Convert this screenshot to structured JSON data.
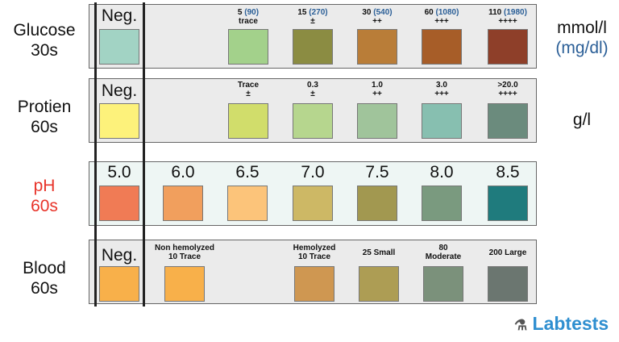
{
  "rows": {
    "glucose": {
      "name": "Glucose",
      "time": "30s",
      "unit": "mmol/l",
      "unit2": "(mg/dl)",
      "neg": "Neg.",
      "neg_color": "#a2d3c4",
      "levels": [
        {
          "v": "5",
          "mg": "(90)",
          "sym": "trace",
          "color": "#a3d18b"
        },
        {
          "v": "15",
          "mg": "(270)",
          "sym": "±",
          "color": "#8b8c42"
        },
        {
          "v": "30",
          "mg": "(540)",
          "sym": "++",
          "color": "#b97d38"
        },
        {
          "v": "60",
          "mg": "(1080)",
          "sym": "+++",
          "color": "#a75d28"
        },
        {
          "v": "110",
          "mg": "(1980)",
          "sym": "++++",
          "color": "#8e3f29"
        }
      ]
    },
    "protein": {
      "name": "Protien",
      "time": "60s",
      "unit": "g/l",
      "neg": "Neg.",
      "neg_color": "#fdf27b",
      "levels": [
        {
          "v": "Trace",
          "sym": "±",
          "color": "#d1dd6b"
        },
        {
          "v": "0.3",
          "sym": "±",
          "color": "#b6d68e"
        },
        {
          "v": "1.0",
          "sym": "++",
          "color": "#a0c49b"
        },
        {
          "v": "3.0",
          "sym": "+++",
          "color": "#87bfb0"
        },
        {
          "v": ">20.0",
          "sym": "++++",
          "color": "#6b8b7d"
        }
      ]
    },
    "ph": {
      "name": "pH",
      "time": "60s",
      "name_color": "#e8342a",
      "levels": [
        {
          "v": "5.0",
          "color": "#f07b55"
        },
        {
          "v": "6.0",
          "color": "#f19f5d"
        },
        {
          "v": "6.5",
          "color": "#fcc47a"
        },
        {
          "v": "7.0",
          "color": "#cdb865"
        },
        {
          "v": "7.5",
          "color": "#a29850"
        },
        {
          "v": "8.0",
          "color": "#7a9a7f"
        },
        {
          "v": "8.5",
          "color": "#1f7b7d"
        }
      ]
    },
    "blood": {
      "name": "Blood",
      "time": "60s",
      "neg": "Neg.",
      "neg_color": "#f8b04a",
      "levels": [
        {
          "l1": "Non hemolyzed",
          "l2": "10 Trace",
          "color": "#f8b04a"
        },
        {
          "l1": "Hemolyzed",
          "l2": "10 Trace",
          "color": "#cf9751"
        },
        {
          "l1": "",
          "l2": "25 Small",
          "color": "#ad9d54"
        },
        {
          "l1": "80",
          "l2": "Moderate",
          "color": "#7b917b"
        },
        {
          "l1": "",
          "l2": "200 Large",
          "color": "#6b7670"
        }
      ]
    }
  },
  "logo": "Labtests"
}
